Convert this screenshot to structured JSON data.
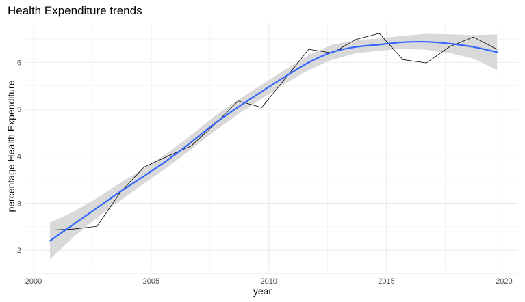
{
  "chart_data": {
    "type": "line",
    "title": "Health Expenditure trends",
    "xlabel": "year",
    "ylabel": "percentage Health Expenditure",
    "xlim": [
      1999.65,
      2020.6
    ],
    "ylim": [
      1.55,
      6.85
    ],
    "x_ticks": [
      2000,
      2005,
      2010,
      2015,
      2020
    ],
    "y_ticks": [
      2,
      3,
      4,
      5,
      6
    ],
    "grid": true,
    "series": [
      {
        "kind": "observed",
        "color": "#000000",
        "x": [
          2000.7,
          2001.7,
          2002.7,
          2003.7,
          2004.7,
          2005.7,
          2006.7,
          2007.7,
          2008.7,
          2009.7,
          2010.7,
          2011.7,
          2012.7,
          2013.7,
          2014.7,
          2015.7,
          2016.7,
          2017.7,
          2018.7,
          2019.7
        ],
        "y": [
          2.43,
          2.45,
          2.51,
          3.24,
          3.77,
          4.0,
          4.22,
          4.68,
          5.18,
          5.04,
          5.66,
          6.28,
          6.2,
          6.49,
          6.62,
          6.06,
          5.99,
          6.34,
          6.54,
          6.28
        ]
      },
      {
        "kind": "smooth",
        "color": "#3366FF",
        "ribbon_color": "#D9D9D9",
        "x": [
          2000.7,
          2001.7,
          2002.7,
          2003.7,
          2004.7,
          2005.7,
          2006.7,
          2007.7,
          2008.7,
          2009.7,
          2010.7,
          2011.7,
          2012.7,
          2013.7,
          2014.7,
          2015.7,
          2016.7,
          2017.7,
          2018.7,
          2019.7
        ],
        "y": [
          2.2,
          2.55,
          2.9,
          3.25,
          3.58,
          3.92,
          4.3,
          4.7,
          5.05,
          5.38,
          5.7,
          6.0,
          6.22,
          6.33,
          6.38,
          6.43,
          6.44,
          6.4,
          6.33,
          6.22
        ],
        "lower": [
          1.81,
          2.28,
          2.69,
          3.06,
          3.42,
          3.77,
          4.15,
          4.54,
          4.9,
          5.23,
          5.55,
          5.84,
          6.06,
          6.19,
          6.25,
          6.29,
          6.27,
          6.2,
          6.08,
          5.84
        ],
        "upper": [
          2.59,
          2.82,
          3.11,
          3.44,
          3.74,
          4.07,
          4.45,
          4.86,
          5.2,
          5.53,
          5.85,
          6.16,
          6.38,
          6.47,
          6.51,
          6.57,
          6.61,
          6.6,
          6.58,
          6.6
        ]
      }
    ]
  }
}
